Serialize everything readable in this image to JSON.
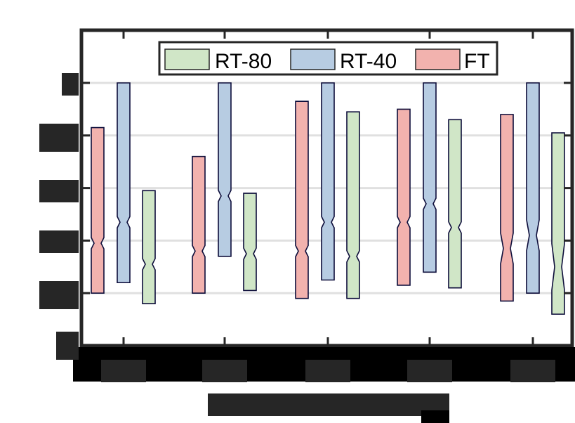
{
  "chart_data": {
    "type": "boxplot",
    "title": "",
    "xlabel": "[redacted]",
    "ylabel": "",
    "ylim": [
      0,
      1.1
    ],
    "yticks": [
      0,
      0.2,
      0.4,
      0.6,
      0.8,
      1
    ],
    "ytick_labels_visible": false,
    "categories": [
      "[redacted-1]",
      "[redacted-2]",
      "[redacted-3]",
      "[redacted-4]",
      "[redacted-5]"
    ],
    "grid": "horizontal",
    "legend_position": "top-center",
    "series": [
      {
        "name": "FT",
        "color": "#f2b2ae",
        "boxes": [
          {
            "q3": 0.83,
            "median": 0.39,
            "q1": 0.2
          },
          {
            "q3": 0.72,
            "median": 0.36,
            "q1": 0.2
          },
          {
            "q3": 0.93,
            "median": 0.36,
            "q1": 0.18
          },
          {
            "q3": 0.9,
            "median": 0.47,
            "q1": 0.23
          },
          {
            "q3": 0.88,
            "median": 0.37,
            "q1": 0.17
          }
        ]
      },
      {
        "name": "RT-40",
        "color": "#b7cce2",
        "boxes": [
          {
            "q3": 1.0,
            "median": 0.47,
            "q1": 0.24
          },
          {
            "q3": 1.0,
            "median": 0.57,
            "q1": 0.34
          },
          {
            "q3": 1.0,
            "median": 0.47,
            "q1": 0.25
          },
          {
            "q3": 1.0,
            "median": 0.54,
            "q1": 0.28
          },
          {
            "q3": 1.0,
            "median": 0.42,
            "q1": 0.2
          }
        ]
      },
      {
        "name": "RT-80",
        "color": "#d0e6c7",
        "boxes": [
          {
            "q3": 0.59,
            "median": 0.31,
            "q1": 0.16
          },
          {
            "q3": 0.58,
            "median": 0.35,
            "q1": 0.21
          },
          {
            "q3": 0.89,
            "median": 0.34,
            "q1": 0.18
          },
          {
            "q3": 0.86,
            "median": 0.45,
            "q1": 0.22
          },
          {
            "q3": 0.81,
            "median": 0.3,
            "q1": 0.12
          }
        ]
      }
    ]
  },
  "legend": {
    "items": [
      {
        "label": "RT-80",
        "color": "#d0e6c7"
      },
      {
        "label": "RT-40",
        "color": "#b7cce2"
      },
      {
        "label": "FT",
        "color": "#f2b2ae"
      }
    ]
  },
  "style": {
    "edge_color": "#0d0d3a",
    "grid_color": "#e0e0e0",
    "frame_color": "#262626",
    "redaction_color": "#262626"
  }
}
